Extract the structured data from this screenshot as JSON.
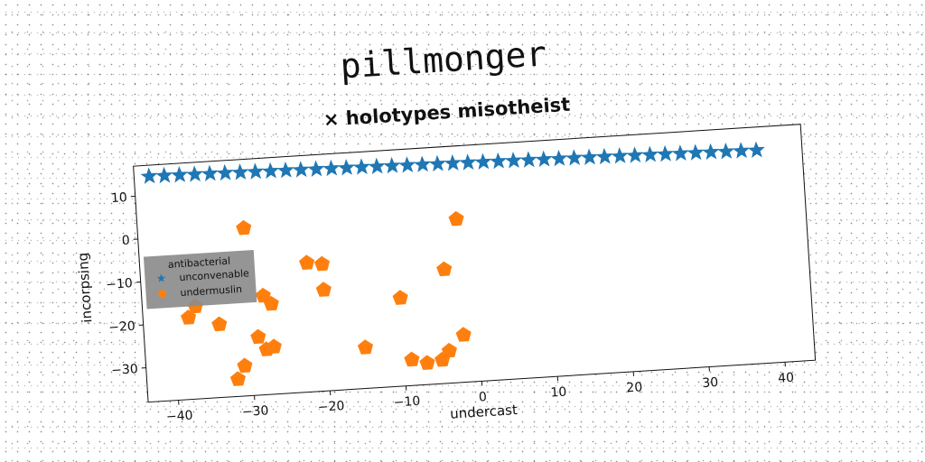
{
  "chart_data": {
    "type": "scatter",
    "title": "pillmonger",
    "subtitle": "× holotypes misotheist",
    "xlabel": "undercast",
    "ylabel": "incorpsing",
    "xlim": [
      -44,
      44
    ],
    "ylim": [
      -38,
      17
    ],
    "xticks": [
      -40,
      -30,
      -20,
      -10,
      0,
      10,
      20,
      30,
      40
    ],
    "yticks": [
      -30,
      -20,
      -10,
      0,
      10
    ],
    "grid": false,
    "legend": {
      "title": "antibacterial",
      "placement": "center-left"
    },
    "series": [
      {
        "name": "unconvenable",
        "marker": "star",
        "color": "#1f77b4",
        "x": [
          -42,
          -40,
          -38,
          -36,
          -34,
          -32,
          -30,
          -28,
          -26,
          -24,
          -22,
          -20,
          -18,
          -16,
          -14,
          -12,
          -10,
          -8,
          -6,
          -4,
          -2,
          0,
          2,
          4,
          6,
          8,
          10,
          12,
          14,
          16,
          18,
          20,
          22,
          24,
          26,
          28,
          30,
          32,
          34,
          36,
          38
        ],
        "y": [
          14.4,
          14.33,
          14.26,
          14.19,
          14.12,
          14.05,
          13.98,
          13.91,
          13.84,
          13.77,
          13.7,
          13.63,
          13.56,
          13.49,
          13.42,
          13.35,
          13.28,
          13.21,
          13.14,
          13.07,
          13,
          12.93,
          12.86,
          12.79,
          12.72,
          12.65,
          12.58,
          12.51,
          12.44,
          12.37,
          12.3,
          12.23,
          12.16,
          12.09,
          12.02,
          11.95,
          11.88,
          11.81,
          11.74,
          11.67,
          11.6
        ]
      },
      {
        "name": "undermuslin",
        "marker": "pentagon",
        "color": "#ff7f0e",
        "x": [
          -30,
          -22,
          -20,
          -4,
          -2,
          -37,
          -38,
          -34,
          -29,
          -28,
          -27,
          -28,
          -27,
          -20,
          -10,
          -15,
          -9,
          -7,
          -5,
          -4,
          -2,
          -31,
          -32
        ],
        "y": [
          1,
          -8,
          -8.5,
          -11.5,
          0,
          -16.5,
          -19,
          -21,
          -24.5,
          -27.5,
          -27,
          -15,
          -17,
          -14.5,
          -17.5,
          -28.5,
          -32,
          -33,
          -32.5,
          -30.5,
          -27,
          -31,
          -34
        ]
      }
    ]
  }
}
